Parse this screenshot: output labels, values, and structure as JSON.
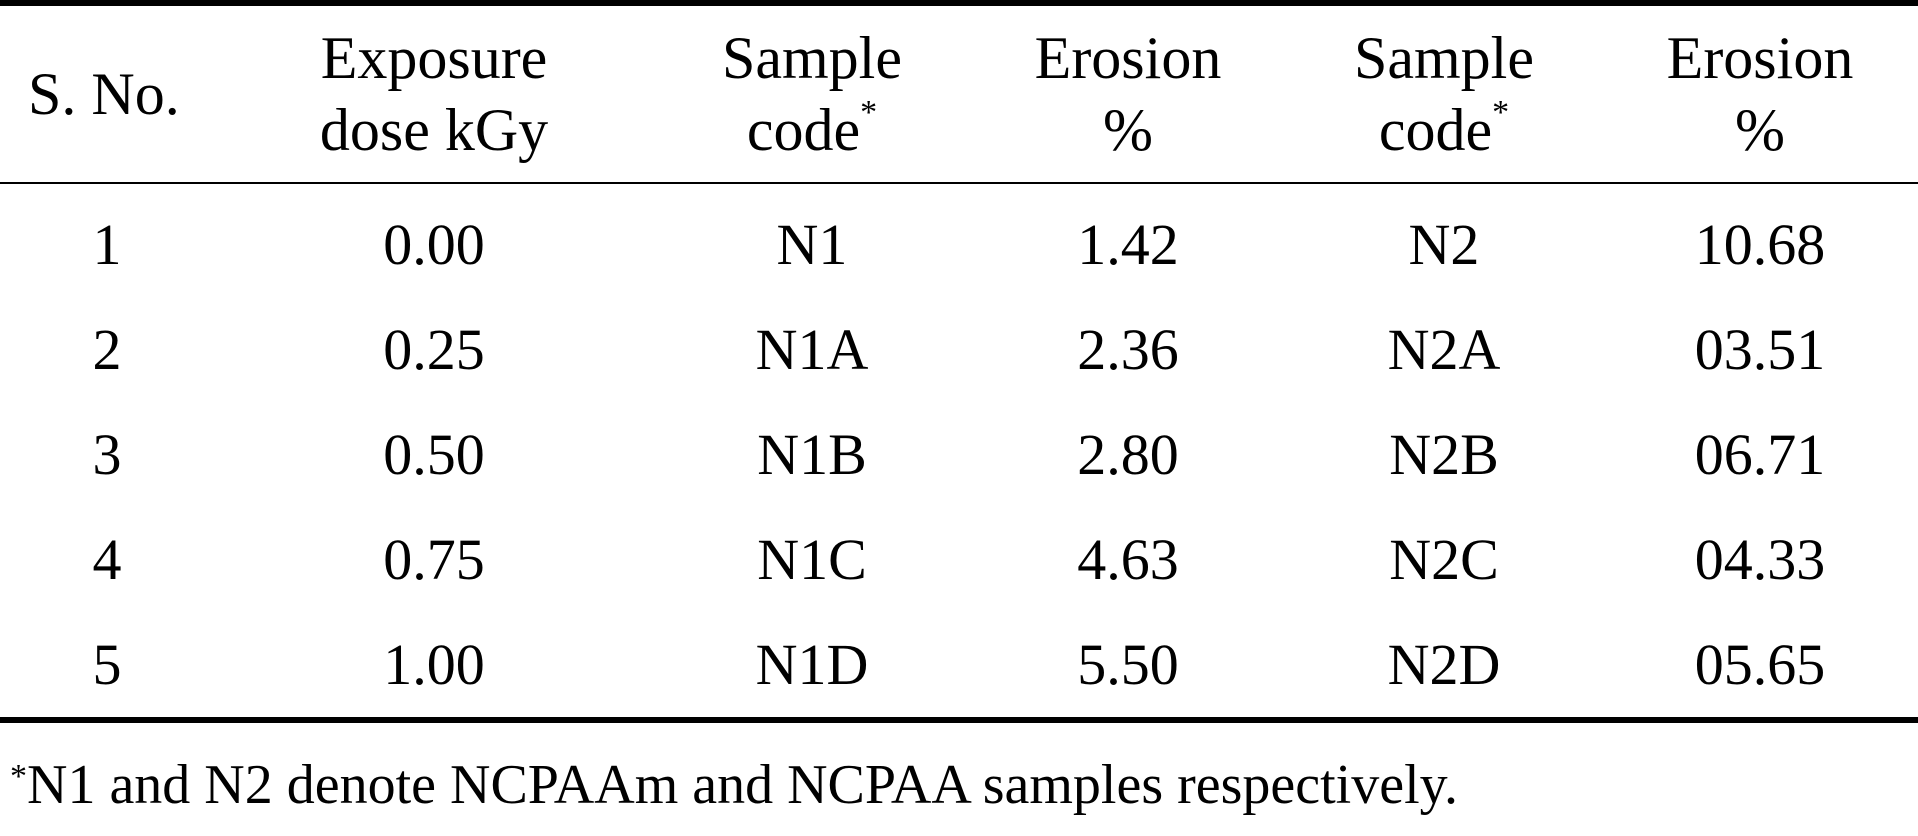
{
  "table": {
    "headers": [
      {
        "line1": "S. No.",
        "line2": "",
        "asterisk": ""
      },
      {
        "line1": "Exposure",
        "line2": "dose kGy",
        "asterisk": ""
      },
      {
        "line1": "Sample",
        "line2": "code",
        "asterisk": "*"
      },
      {
        "line1": "Erosion",
        "line2": "%",
        "asterisk": ""
      },
      {
        "line1": "Sample",
        "line2": "code",
        "asterisk": "*"
      },
      {
        "line1": "Erosion",
        "line2": "%",
        "asterisk": ""
      }
    ],
    "rows": [
      [
        "1",
        "0.00",
        "N1",
        "1.42",
        "N2",
        "10.68"
      ],
      [
        "2",
        "0.25",
        "N1A",
        "2.36",
        "N2A",
        "03.51"
      ],
      [
        "3",
        "0.50",
        "N1B",
        "2.80",
        "N2B",
        "06.71"
      ],
      [
        "4",
        "0.75",
        "N1C",
        "4.63",
        "N2C",
        "04.33"
      ],
      [
        "5",
        "1.00",
        "N1D",
        "5.50",
        "N2D",
        "05.65"
      ]
    ]
  },
  "footnote": {
    "marker": "*",
    "text": "N1 and N2 denote NCPAAm and NCPAA samples respectively."
  }
}
